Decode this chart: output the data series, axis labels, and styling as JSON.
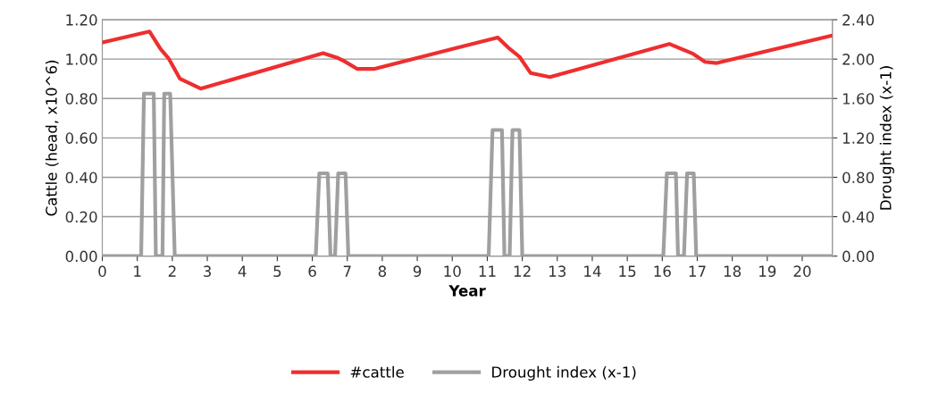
{
  "chart_data": {
    "type": "line",
    "xlabel": "Year",
    "ylabel": "Cattle (head, x10^6)",
    "y2label": "Drought index (x-1)",
    "xlim": [
      0,
      20.86
    ],
    "xticks": [
      0,
      1,
      2,
      3,
      4,
      5,
      6,
      7,
      8,
      9,
      10,
      11,
      12,
      13,
      14,
      15,
      16,
      17,
      18,
      19,
      20
    ],
    "ylim": [
      0,
      1.2
    ],
    "yticks": [
      {
        "value": 0,
        "label": "0.00"
      },
      {
        "value": 0.2,
        "label": "0.20"
      },
      {
        "value": 0.4,
        "label": "0.40"
      },
      {
        "value": 0.6,
        "label": "0.60"
      },
      {
        "value": 0.8,
        "label": "0.80"
      },
      {
        "value": 1.0,
        "label": "1.00"
      },
      {
        "value": 1.2,
        "label": "1.20"
      }
    ],
    "y2lim": [
      0,
      2.4
    ],
    "y2ticks": [
      {
        "value": 0,
        "label": "0.00"
      },
      {
        "value": 0.4,
        "label": "0.40"
      },
      {
        "value": 0.8,
        "label": "0.80"
      },
      {
        "value": 1.2,
        "label": "1.20"
      },
      {
        "value": 1.6,
        "label": "1.60"
      },
      {
        "value": 2.0,
        "label": "2.00"
      },
      {
        "value": 2.4,
        "label": "2.40"
      }
    ],
    "grid": "y",
    "legend": "bottom",
    "marker": "none",
    "line_style": "solid",
    "series": [
      {
        "name": "#cattle",
        "color": "#ee2e2f",
        "x": [
          0,
          1.35,
          1.67,
          1.89,
          2.22,
          2.81,
          6.31,
          6.74,
          6.91,
          7.29,
          7.76,
          11.3,
          11.6,
          11.92,
          12.24,
          12.79,
          16.2,
          16.88,
          17.22,
          17.56,
          20.86
        ],
        "values": [
          1.085,
          1.14,
          1.05,
          1.005,
          0.9,
          0.85,
          1.03,
          1.005,
          0.99,
          0.95,
          0.95,
          1.11,
          1.058,
          1.012,
          0.929,
          0.909,
          1.077,
          1.027,
          0.986,
          0.98,
          1.12
        ]
      },
      {
        "name": "Drought index (x-1)",
        "color": "#a0a0a0",
        "axis": "y2",
        "x": [
          0,
          1.11,
          1.19,
          1.47,
          1.53,
          1.72,
          1.77,
          1.94,
          2.07,
          6.1,
          6.2,
          6.44,
          6.52,
          6.65,
          6.74,
          6.95,
          7.03,
          11.04,
          11.15,
          11.42,
          11.49,
          11.64,
          11.72,
          11.92,
          12.0,
          16.03,
          16.13,
          16.39,
          16.45,
          16.62,
          16.71,
          16.9,
          16.97,
          20.86
        ],
        "values": [
          0,
          0,
          1.65,
          1.65,
          0,
          0,
          1.65,
          1.65,
          0,
          0,
          0.84,
          0.84,
          0,
          0,
          0.84,
          0.84,
          0,
          0,
          1.28,
          1.28,
          0,
          0,
          1.28,
          1.28,
          0,
          0,
          0.84,
          0.84,
          0,
          0,
          0.84,
          0.84,
          0,
          0
        ]
      }
    ]
  }
}
